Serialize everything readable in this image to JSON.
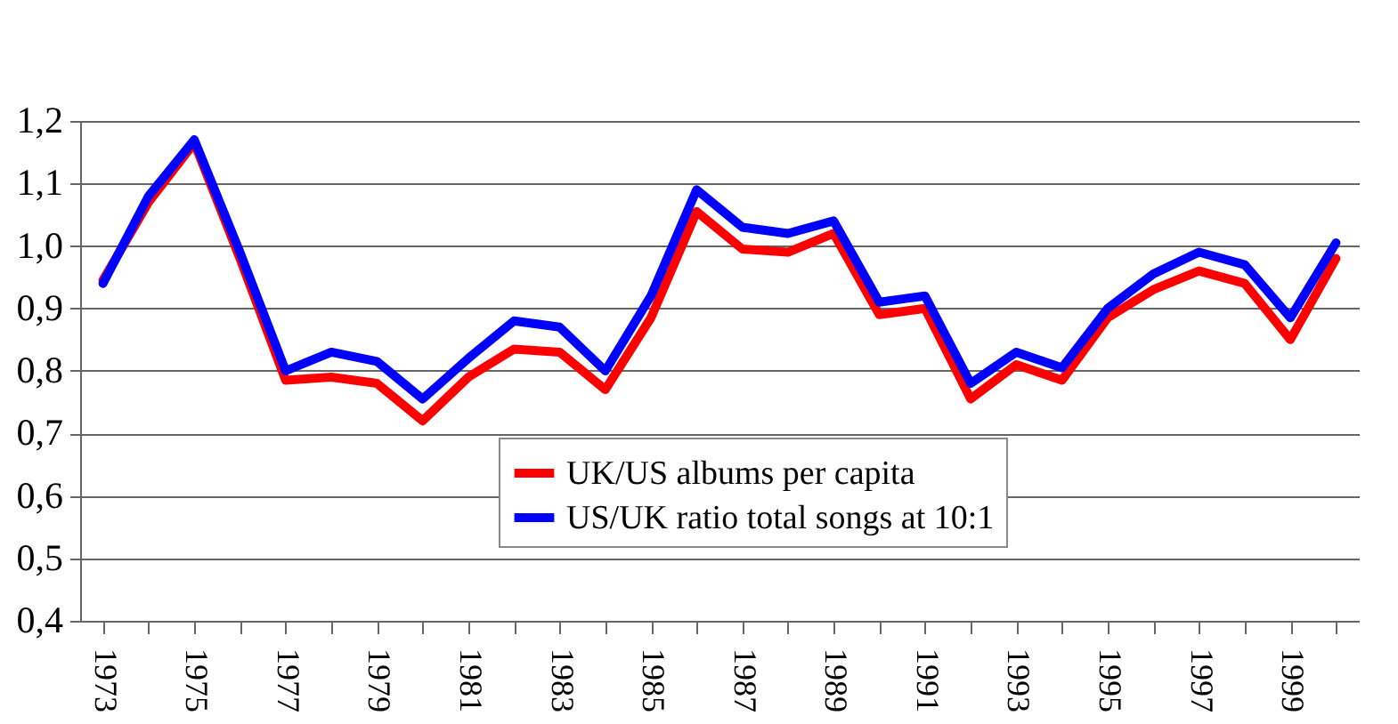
{
  "chart_data": {
    "type": "line",
    "categories": [
      "1973",
      null,
      "1975",
      null,
      "1977",
      null,
      "1979",
      null,
      "1981",
      null,
      "1983",
      null,
      "1985",
      null,
      "1987",
      null,
      "1989",
      null,
      "1991",
      null,
      "1993",
      null,
      "1995",
      null,
      "1997",
      null,
      "1999",
      null
    ],
    "series": [
      {
        "name": "UK/US albums per capita",
        "color": "#ff0000",
        "values": [
          0.945,
          1.07,
          1.165,
          0.98,
          0.785,
          0.79,
          0.78,
          0.72,
          0.79,
          0.835,
          0.83,
          0.77,
          0.885,
          1.055,
          0.995,
          0.99,
          1.02,
          0.89,
          0.9,
          0.755,
          0.81,
          0.785,
          0.885,
          0.93,
          0.96,
          0.94,
          0.85,
          0.98
        ]
      },
      {
        "name": "US/UK ratio total songs at 10:1",
        "color": "#0000ff",
        "values": [
          0.94,
          1.08,
          1.17,
          0.99,
          0.8,
          0.83,
          0.815,
          0.755,
          0.82,
          0.88,
          0.87,
          0.8,
          0.92,
          1.09,
          1.03,
          1.02,
          1.04,
          0.91,
          0.92,
          0.78,
          0.83,
          0.805,
          0.9,
          0.955,
          0.99,
          0.97,
          0.885,
          1.005
        ]
      }
    ],
    "ylim": [
      0.4,
      1.2
    ],
    "yticks": [
      {
        "value": 0.4,
        "label": "0,4"
      },
      {
        "value": 0.5,
        "label": "0,5"
      },
      {
        "value": 0.6,
        "label": "0,6"
      },
      {
        "value": 0.7,
        "label": "0,7"
      },
      {
        "value": 0.8,
        "label": "0,8"
      },
      {
        "value": 0.9,
        "label": "0,9"
      },
      {
        "value": 1.0,
        "label": "1,0"
      },
      {
        "value": 1.1,
        "label": "1,1"
      },
      {
        "value": 1.2,
        "label": "1,2"
      }
    ],
    "grid": "y",
    "legend": "bottom right",
    "marker": "none",
    "line_style": "solid"
  }
}
